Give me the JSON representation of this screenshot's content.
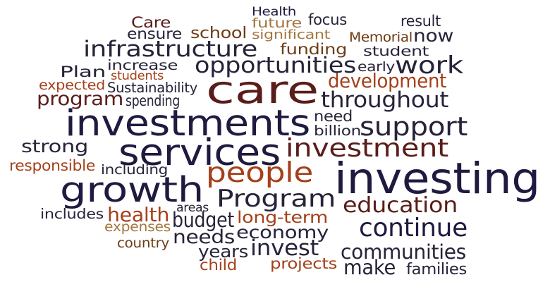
{
  "palette": {
    "navy": "#1f1a3f",
    "dark": "#27233a",
    "maroon": "#5a1d1a",
    "rust": "#a5401a",
    "brown": "#6d3b14",
    "tan": "#a3763f"
  },
  "words": [
    {
      "text": "Health",
      "color": "navy"
    },
    {
      "text": "Care",
      "color": "maroon"
    },
    {
      "text": "future",
      "color": "tan"
    },
    {
      "text": "focus",
      "color": "dark"
    },
    {
      "text": "result",
      "color": "dark"
    },
    {
      "text": "ensure",
      "color": "dark"
    },
    {
      "text": "school",
      "color": "brown"
    },
    {
      "text": "significant",
      "color": "tan"
    },
    {
      "text": "Memorial",
      "color": "brown"
    },
    {
      "text": "now",
      "color": "dark"
    },
    {
      "text": "infrastructure",
      "color": "dark"
    },
    {
      "text": "funding",
      "color": "brown"
    },
    {
      "text": "student",
      "color": "dark"
    },
    {
      "text": "increase",
      "color": "dark"
    },
    {
      "text": "Plan",
      "color": "dark"
    },
    {
      "text": "opportunities",
      "color": "dark"
    },
    {
      "text": "early",
      "color": "dark"
    },
    {
      "text": "work",
      "color": "dark"
    },
    {
      "text": "students",
      "color": "rust"
    },
    {
      "text": "expected",
      "color": "rust"
    },
    {
      "text": "Sustainability",
      "color": "dark"
    },
    {
      "text": "care",
      "color": "maroon"
    },
    {
      "text": "development",
      "color": "rust"
    },
    {
      "text": "program",
      "color": "maroon"
    },
    {
      "text": "spending",
      "color": "dark"
    },
    {
      "text": "throughout",
      "color": "dark"
    },
    {
      "text": "investments",
      "color": "navy"
    },
    {
      "text": "need",
      "color": "dark"
    },
    {
      "text": "support",
      "color": "dark"
    },
    {
      "text": "billion",
      "color": "dark"
    },
    {
      "text": "strong",
      "color": "dark"
    },
    {
      "text": "services",
      "color": "navy"
    },
    {
      "text": "investment",
      "color": "maroon"
    },
    {
      "text": "responsible",
      "color": "rust"
    },
    {
      "text": "including",
      "color": "dark"
    },
    {
      "text": "people",
      "color": "rust"
    },
    {
      "text": "investing",
      "color": "navy"
    },
    {
      "text": "growth",
      "color": "navy"
    },
    {
      "text": "Program",
      "color": "dark"
    },
    {
      "text": "areas",
      "color": "dark"
    },
    {
      "text": "education",
      "color": "maroon"
    },
    {
      "text": "includes",
      "color": "dark"
    },
    {
      "text": "health",
      "color": "rust"
    },
    {
      "text": "budget",
      "color": "dark"
    },
    {
      "text": "long-term",
      "color": "rust"
    },
    {
      "text": "expenses",
      "color": "tan"
    },
    {
      "text": "continue",
      "color": "navy"
    },
    {
      "text": "economy",
      "color": "dark"
    },
    {
      "text": "needs",
      "color": "dark"
    },
    {
      "text": "country",
      "color": "brown"
    },
    {
      "text": "invest",
      "color": "dark"
    },
    {
      "text": "years",
      "color": "dark"
    },
    {
      "text": "communities",
      "color": "dark"
    },
    {
      "text": "child",
      "color": "rust"
    },
    {
      "text": "projects",
      "color": "rust"
    },
    {
      "text": "make",
      "color": "dark"
    },
    {
      "text": "families",
      "color": "dark"
    }
  ]
}
